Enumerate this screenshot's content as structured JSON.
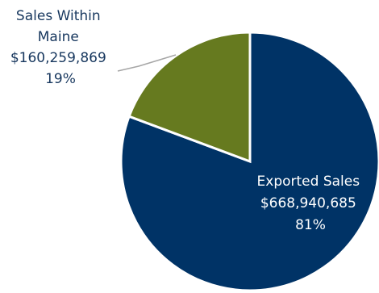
{
  "chart_data": {
    "type": "pie",
    "title": "",
    "slices": [
      {
        "label": "Exported Sales",
        "value": 668940685,
        "value_text": "$668,940,685",
        "percent": 81,
        "percent_text": "81%",
        "color": "#003366"
      },
      {
        "label": "Sales Within Maine",
        "value": 160259869,
        "value_text": "$160,259,869",
        "percent": 19,
        "percent_text": "19%",
        "color": "#667A1F"
      }
    ],
    "label_colors": {
      "outside": "#17375E",
      "inside": "#ffffff"
    },
    "legend": "none"
  }
}
